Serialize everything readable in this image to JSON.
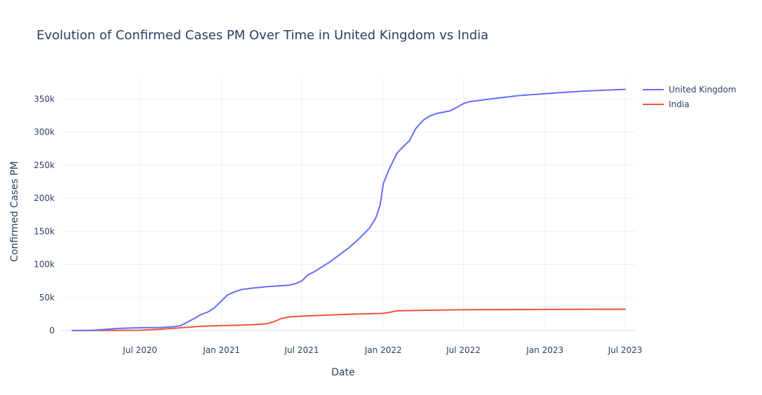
{
  "chart_data": {
    "type": "line",
    "title": "Evolution of Confirmed Cases PM Over Time in United Kingdom vs India",
    "xlabel": "Date",
    "ylabel": "Confirmed Cases PM",
    "x_range": [
      "2020-01-30",
      "2023-07-01"
    ],
    "ylim": [
      0,
      380000
    ],
    "x_ticks": [
      {
        "date": "2020-07-01",
        "label": "Jul 2020"
      },
      {
        "date": "2021-01-01",
        "label": "Jan 2021"
      },
      {
        "date": "2021-07-01",
        "label": "Jul 2021"
      },
      {
        "date": "2022-01-01",
        "label": "Jan 2022"
      },
      {
        "date": "2022-07-01",
        "label": "Jul 2022"
      },
      {
        "date": "2023-01-01",
        "label": "Jan 2023"
      },
      {
        "date": "2023-07-01",
        "label": "Jul 2023"
      }
    ],
    "y_ticks": [
      {
        "value": 0,
        "label": "0"
      },
      {
        "value": 50000,
        "label": "50k"
      },
      {
        "value": 100000,
        "label": "100k"
      },
      {
        "value": 150000,
        "label": "150k"
      },
      {
        "value": 200000,
        "label": "200k"
      },
      {
        "value": 250000,
        "label": "250k"
      },
      {
        "value": 300000,
        "label": "300k"
      },
      {
        "value": 350000,
        "label": "350k"
      }
    ],
    "grid": true,
    "legend_position": "top-right",
    "series": [
      {
        "name": "United Kingdom",
        "color": "#636efa",
        "points": [
          [
            "2020-01-30",
            0
          ],
          [
            "2020-03-15",
            300
          ],
          [
            "2020-04-15",
            1800
          ],
          [
            "2020-05-15",
            3300
          ],
          [
            "2020-06-15",
            4000
          ],
          [
            "2020-07-15",
            4300
          ],
          [
            "2020-08-15",
            4700
          ],
          [
            "2020-09-15",
            5800
          ],
          [
            "2020-10-01",
            7500
          ],
          [
            "2020-10-15",
            12500
          ],
          [
            "2020-11-01",
            18500
          ],
          [
            "2020-11-15",
            24000
          ],
          [
            "2020-12-01",
            28000
          ],
          [
            "2020-12-15",
            34000
          ],
          [
            "2021-01-01",
            45000
          ],
          [
            "2021-01-15",
            54000
          ],
          [
            "2021-02-01",
            59000
          ],
          [
            "2021-02-15",
            62000
          ],
          [
            "2021-03-15",
            64500
          ],
          [
            "2021-04-15",
            66500
          ],
          [
            "2021-06-01",
            68500
          ],
          [
            "2021-06-15",
            70500
          ],
          [
            "2021-07-01",
            75000
          ],
          [
            "2021-07-15",
            84000
          ],
          [
            "2021-08-01",
            90000
          ],
          [
            "2021-08-15",
            96000
          ],
          [
            "2021-09-01",
            103000
          ],
          [
            "2021-09-15",
            110000
          ],
          [
            "2021-10-15",
            125000
          ],
          [
            "2021-11-01",
            135000
          ],
          [
            "2021-11-15",
            144000
          ],
          [
            "2021-12-01",
            155000
          ],
          [
            "2021-12-15",
            170000
          ],
          [
            "2021-12-25",
            190000
          ],
          [
            "2022-01-01",
            222000
          ],
          [
            "2022-01-15",
            245000
          ],
          [
            "2022-02-01",
            268000
          ],
          [
            "2022-02-15",
            278000
          ],
          [
            "2022-03-01",
            287000
          ],
          [
            "2022-03-15",
            305000
          ],
          [
            "2022-04-01",
            318000
          ],
          [
            "2022-04-15",
            324000
          ],
          [
            "2022-05-01",
            328000
          ],
          [
            "2022-06-01",
            332000
          ],
          [
            "2022-06-15",
            337000
          ],
          [
            "2022-07-01",
            343000
          ],
          [
            "2022-07-15",
            346000
          ],
          [
            "2022-09-01",
            350000
          ],
          [
            "2022-11-01",
            355000
          ],
          [
            "2023-01-01",
            358000
          ],
          [
            "2023-04-01",
            362000
          ],
          [
            "2023-07-01",
            364500
          ]
        ]
      },
      {
        "name": "India",
        "color": "#ef553b",
        "points": [
          [
            "2020-01-30",
            0
          ],
          [
            "2020-05-01",
            200
          ],
          [
            "2020-07-01",
            500
          ],
          [
            "2020-08-15",
            2000
          ],
          [
            "2020-10-01",
            4200
          ],
          [
            "2020-11-15",
            6500
          ],
          [
            "2021-01-01",
            7500
          ],
          [
            "2021-02-15",
            8200
          ],
          [
            "2021-03-15",
            9000
          ],
          [
            "2021-04-15",
            10500
          ],
          [
            "2021-05-01",
            14000
          ],
          [
            "2021-05-15",
            18000
          ],
          [
            "2021-06-01",
            20500
          ],
          [
            "2021-07-01",
            21800
          ],
          [
            "2021-09-01",
            23500
          ],
          [
            "2021-11-01",
            25000
          ],
          [
            "2022-01-01",
            26000
          ],
          [
            "2022-01-15",
            27500
          ],
          [
            "2022-02-01",
            30000
          ],
          [
            "2022-07-01",
            31500
          ],
          [
            "2023-01-01",
            32000
          ],
          [
            "2023-07-01",
            32300
          ]
        ]
      }
    ]
  }
}
